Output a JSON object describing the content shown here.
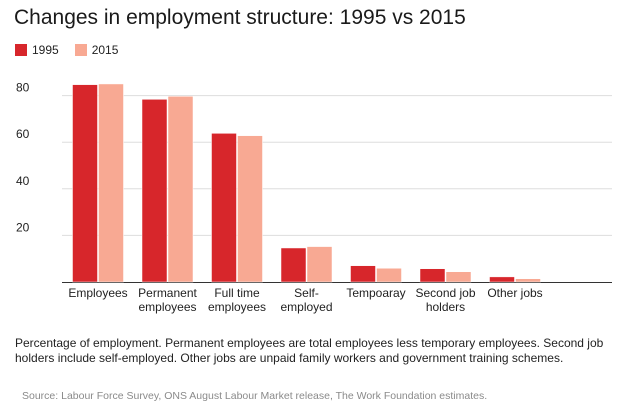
{
  "chart_data": {
    "type": "bar",
    "title": "Changes in employment structure: 1995 vs 2015",
    "categories": [
      [
        "Employees"
      ],
      [
        "Permanent",
        "employees"
      ],
      [
        "Full time",
        "employees"
      ],
      [
        "Self-",
        "employed"
      ],
      [
        "Tempoaray"
      ],
      [
        "Second job",
        "holders"
      ],
      [
        "Other jobs"
      ]
    ],
    "series": [
      {
        "name": "1995",
        "color": "#d7262b",
        "values": [
          84.7,
          78.4,
          63.8,
          14.6,
          7.0,
          5.7,
          2.2
        ]
      },
      {
        "name": "2015",
        "color": "#f8a993",
        "values": [
          85.0,
          79.7,
          62.8,
          15.2,
          5.9,
          4.4,
          1.4
        ]
      }
    ],
    "yticks": [
      20,
      40,
      60,
      80
    ],
    "ylim": [
      0,
      90
    ],
    "grid": true,
    "legend_position": "top-left"
  },
  "caption": "Percentage of employment. Permanent employees are total employees less temporary employees. Second job holders include self-employed. Other jobs are unpaid family workers and government training schemes.",
  "source": "Source: Labour Force Survey, ONS August Labour Market release, The Work Foundation estimates."
}
